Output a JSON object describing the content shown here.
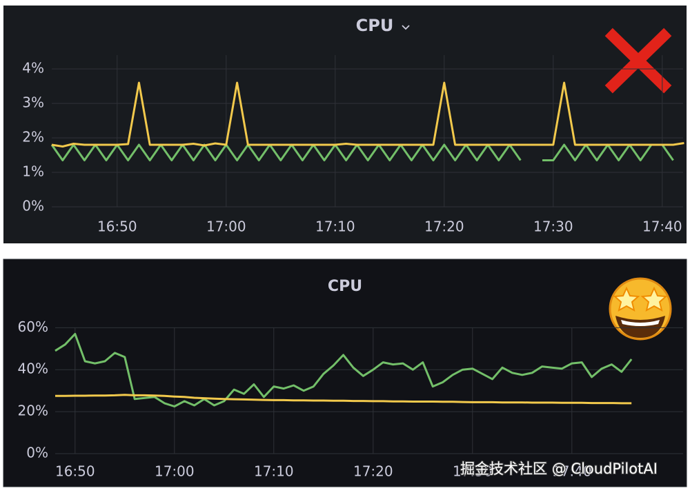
{
  "chart_data": [
    {
      "type": "line",
      "title": "CPU",
      "grid": true,
      "categories": [
        null,
        null,
        null,
        null,
        null,
        null,
        "16:50",
        null,
        null,
        null,
        null,
        null,
        null,
        null,
        null,
        null,
        "17:00",
        null,
        null,
        null,
        null,
        null,
        null,
        null,
        null,
        null,
        "17:10",
        null,
        null,
        null,
        null,
        null,
        null,
        null,
        null,
        null,
        "17:20",
        null,
        null,
        null,
        null,
        null,
        null,
        null,
        null,
        null,
        "17:30",
        null,
        null,
        null,
        null,
        null,
        null,
        null,
        null,
        null,
        "17:40",
        null,
        null
      ],
      "series": [
        {
          "color": "#73bf69",
          "values": [
            1.8,
            1.35,
            1.8,
            1.35,
            1.8,
            1.35,
            1.8,
            1.35,
            1.8,
            1.35,
            1.8,
            1.35,
            1.8,
            1.35,
            1.8,
            1.35,
            1.8,
            1.35,
            1.8,
            1.35,
            1.8,
            1.35,
            1.8,
            1.35,
            1.8,
            1.35,
            1.8,
            1.35,
            1.8,
            1.35,
            1.8,
            1.35,
            1.8,
            1.35,
            1.8,
            1.35,
            1.8,
            1.35,
            1.8,
            1.35,
            1.8,
            1.35,
            1.8,
            1.35,
            null,
            1.35,
            1.35,
            1.8,
            1.35,
            1.8,
            1.35,
            1.8,
            1.35,
            1.8,
            1.35,
            1.8,
            1.8,
            1.35,
            null
          ]
        },
        {
          "color": "#f2c94c",
          "values": [
            1.8,
            1.75,
            1.83,
            1.8,
            1.8,
            1.8,
            1.8,
            1.82,
            3.6,
            1.8,
            1.8,
            1.8,
            1.8,
            1.83,
            1.78,
            1.84,
            1.8,
            3.6,
            1.8,
            1.8,
            1.8,
            1.8,
            1.8,
            1.8,
            1.8,
            1.8,
            1.8,
            1.83,
            1.8,
            1.8,
            1.8,
            1.8,
            1.8,
            1.8,
            1.8,
            1.8,
            3.6,
            1.8,
            1.8,
            1.8,
            1.8,
            1.8,
            1.8,
            1.8,
            1.8,
            1.8,
            1.8,
            3.6,
            1.8,
            1.8,
            1.8,
            1.8,
            1.8,
            1.8,
            1.8,
            1.8,
            1.8,
            1.8,
            1.85
          ]
        }
      ],
      "ylim": [
        0,
        4.4
      ],
      "yticks": [
        {
          "value": 0,
          "label": "0%"
        },
        {
          "value": 1,
          "label": "1%"
        },
        {
          "value": 2,
          "label": "2%"
        },
        {
          "value": 3,
          "label": "3%"
        },
        {
          "value": 4,
          "label": "4%"
        }
      ]
    },
    {
      "type": "line",
      "title": "CPU",
      "grid": true,
      "categories": [
        null,
        null,
        "16:50",
        null,
        null,
        null,
        null,
        null,
        null,
        null,
        null,
        null,
        "17:00",
        null,
        null,
        null,
        null,
        null,
        null,
        null,
        null,
        null,
        "17:10",
        null,
        null,
        null,
        null,
        null,
        null,
        null,
        null,
        null,
        "17:20",
        null,
        null,
        null,
        null,
        null,
        null,
        null,
        null,
        null,
        "17:30",
        null,
        null,
        null,
        null,
        null,
        null,
        null,
        null,
        null,
        "17:40",
        null,
        null,
        null,
        null,
        null,
        null
      ],
      "series": [
        {
          "color": "#73bf69",
          "values": [
            49,
            52,
            57,
            44,
            43,
            44,
            48,
            46,
            26,
            26.5,
            27,
            24,
            22.5,
            25,
            23,
            26,
            23,
            25,
            30.5,
            28.5,
            33,
            27,
            32,
            31,
            32.5,
            30,
            32,
            38,
            42,
            47,
            41,
            37,
            40,
            43.5,
            42.5,
            43,
            40,
            43.5,
            32,
            34,
            37.5,
            40,
            40.5,
            38,
            35.5,
            41,
            38.5,
            37.5,
            38.5,
            41.5,
            41,
            40.5,
            43,
            43.5,
            36.5,
            40.5,
            42.5,
            39,
            45
          ]
        },
        {
          "color": "#f2c94c",
          "values": [
            27.5,
            27.5,
            27.6,
            27.6,
            27.7,
            27.7,
            27.8,
            28,
            27.8,
            27.8,
            27.7,
            27.5,
            27.2,
            27,
            26.6,
            26.4,
            26.2,
            26,
            25.9,
            25.8,
            25.7,
            25.6,
            25.5,
            25.5,
            25.4,
            25.4,
            25.3,
            25.3,
            25.2,
            25.2,
            25.1,
            25.1,
            25,
            25,
            24.9,
            24.9,
            24.8,
            24.8,
            24.8,
            24.7,
            24.7,
            24.6,
            24.5,
            24.5,
            24.5,
            24.4,
            24.4,
            24.4,
            24.3,
            24.3,
            24.3,
            24.2,
            24.2,
            24.2,
            24.1,
            24.1,
            24.1,
            24,
            24
          ]
        }
      ],
      "ylim": [
        0,
        67
      ],
      "yticks": [
        {
          "value": 0,
          "label": "0%"
        },
        {
          "value": 20,
          "label": "20%"
        },
        {
          "value": 40,
          "label": "40%"
        },
        {
          "value": 60,
          "label": "60%"
        }
      ]
    }
  ],
  "watermark": "掘金技术社区 @ CloudPilotAI"
}
